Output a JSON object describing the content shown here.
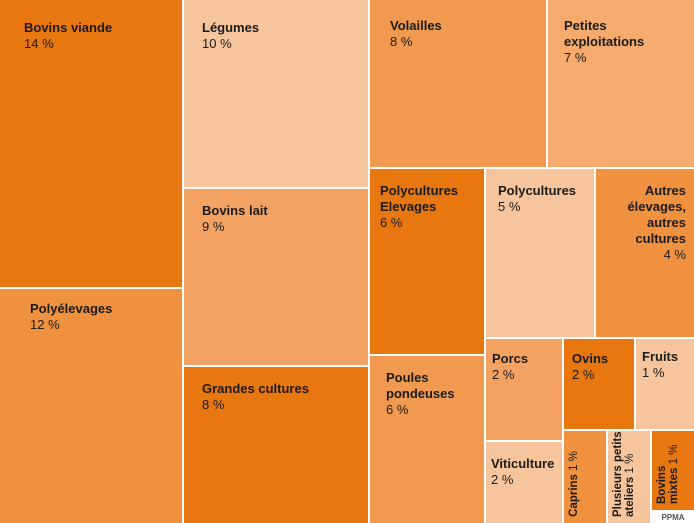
{
  "chart_data": {
    "type": "treemap",
    "categories": [
      "Bovins viande",
      "Polyélevages",
      "Légumes",
      "Bovins lait",
      "Grandes cultures",
      "Volailles",
      "Petites exploitations",
      "Polycultures Elevages",
      "Polycultures",
      "Autres élevages, autres cultures",
      "Poules pondeuses",
      "Porcs",
      "Viticulture",
      "Ovins",
      "Fruits",
      "Caprins",
      "Plusieurs petits ateliers",
      "Bovins mixtes"
    ],
    "values": [
      14,
      12,
      10,
      9,
      8,
      8,
      7,
      6,
      5,
      4,
      6,
      2,
      2,
      2,
      1,
      1,
      1,
      1
    ],
    "value_labels": [
      "14 %",
      "12 %",
      "10 %",
      "9 %",
      "8 %",
      "8 %",
      "7 %",
      "6 %",
      "5 %",
      "4 %",
      "6 %",
      "2 %",
      "2 %",
      "2 %",
      "1 %",
      "1 %",
      "1 %",
      "1 %"
    ],
    "colors": [
      "#e8770f",
      "#f0913f",
      "#f6c59b",
      "#f3a262",
      "#e8770f",
      "#f19a4f",
      "#f4ab6d",
      "#e8770f",
      "#f6c59b",
      "#f0913f",
      "#f19a4f",
      "#f3a262",
      "#f6c59b",
      "#e8770f",
      "#f6c59b",
      "#f0913f",
      "#f6c59b",
      "#e8770f"
    ],
    "annotation": "PPMA"
  }
}
